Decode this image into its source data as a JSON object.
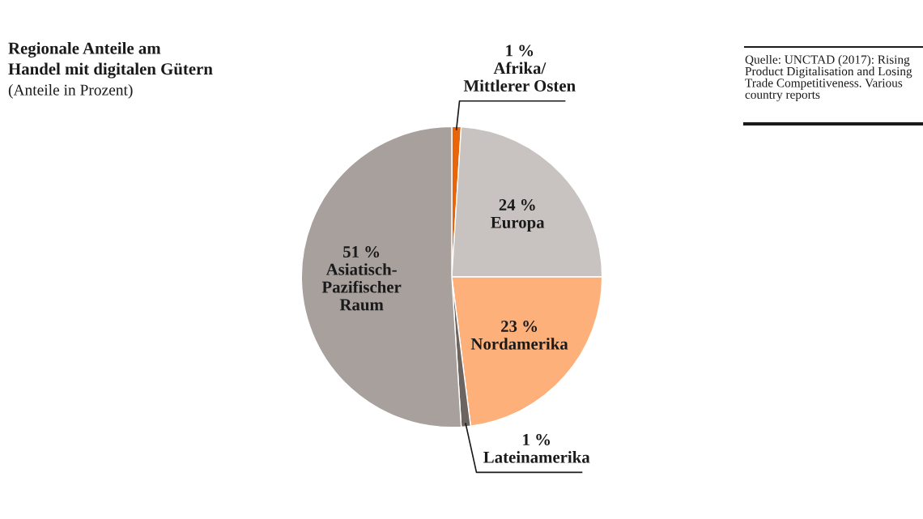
{
  "chart_data": {
    "type": "pie",
    "title": "Regionale Anteile am\nHandel mit digitalen Gütern",
    "subtitle": "(Anteile in Prozent)",
    "categories": [
      "Afrika/\nMittlerer Osten",
      "Europa",
      "Nordamerika",
      "Lateinamerika",
      "Asiatisch-\nPazifischer\nRaum"
    ],
    "values": [
      1,
      24,
      23,
      1,
      51
    ],
    "value_labels": [
      "1 %",
      "24 %",
      "23 %",
      "1 %",
      "51 %"
    ],
    "colors": [
      "#e8650a",
      "#c8c3c0",
      "#fdb07a",
      "#6b6461",
      "#a8a09d"
    ],
    "annotations": [
      "Quelle: UNCTAD (2017): Rising Product Digitalisation and Losing Trade Competitiveness. Various country reports"
    ],
    "legend": false
  }
}
